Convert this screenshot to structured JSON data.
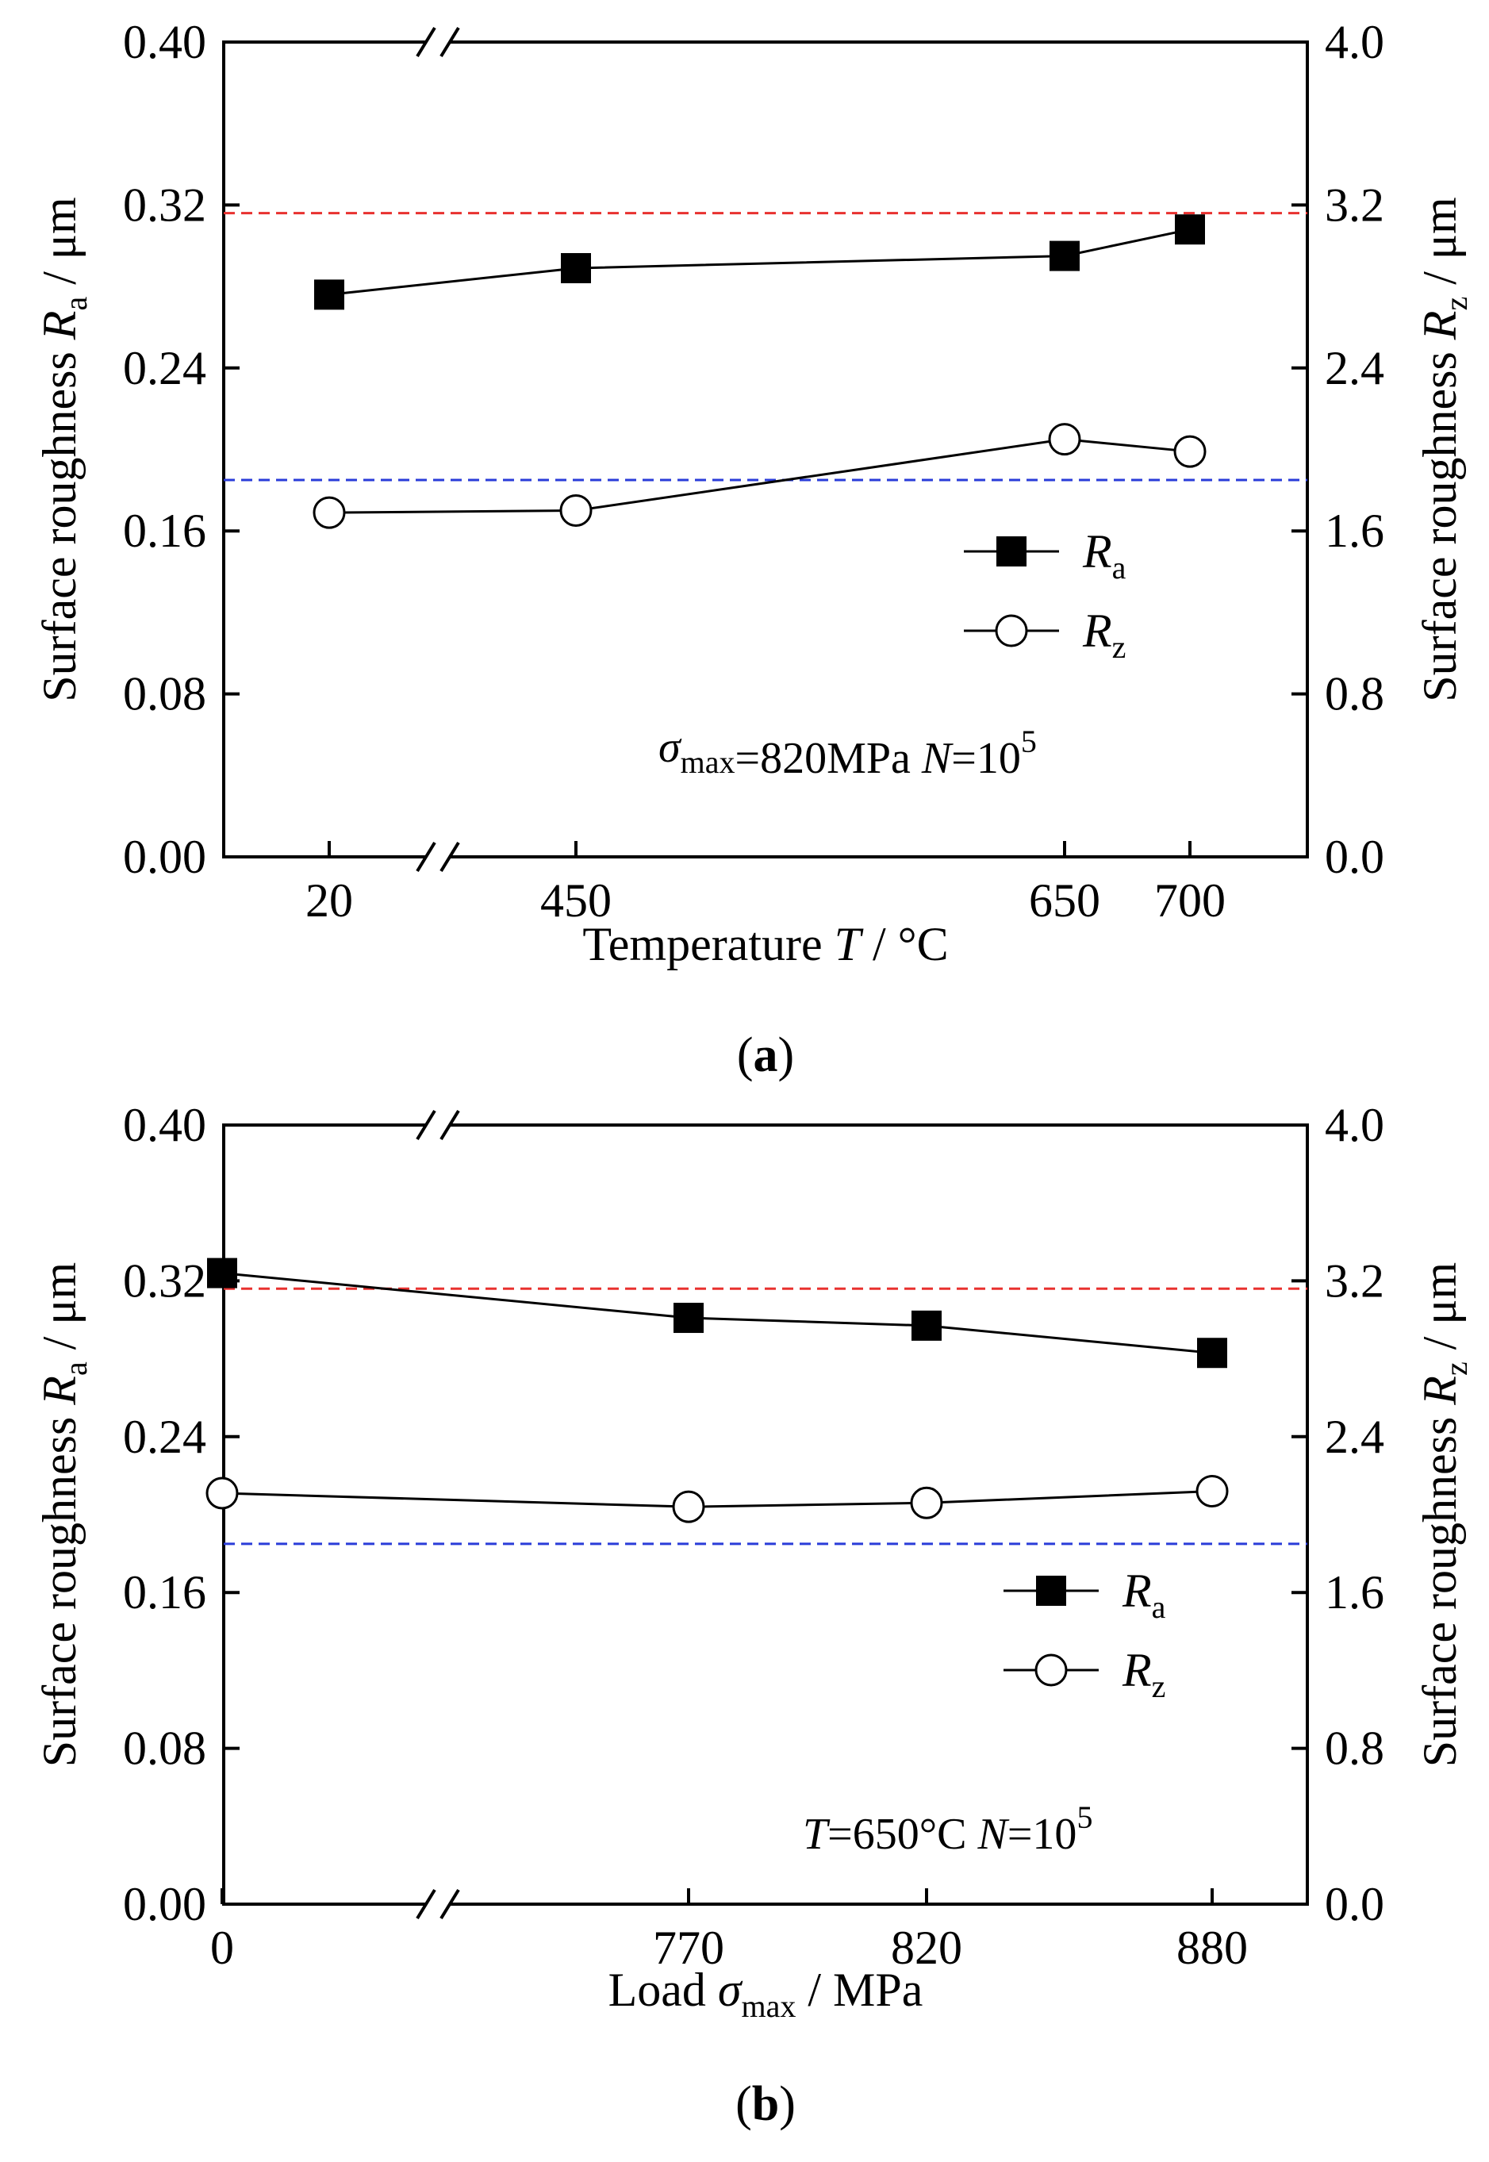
{
  "chart_data": [
    {
      "type": "line",
      "panel_label": "(a)",
      "xlabel": {
        "main": "Temperature ",
        "var": "T",
        "unit": " / °C"
      },
      "ylabel_left": {
        "main": "Surface roughness ",
        "var": "R",
        "sub": "a",
        "unit": " / μm"
      },
      "ylabel_right": {
        "main": "Surface roughness ",
        "var": "R",
        "sub": "z",
        "unit": " / μm"
      },
      "x_tick_labels": [
        "20",
        "450",
        "650",
        "700"
      ],
      "y_left_ticks": [
        "0.00",
        "0.08",
        "0.16",
        "0.24",
        "0.32",
        "0.40"
      ],
      "y_right_ticks": [
        "0.0",
        "0.8",
        "1.6",
        "2.4",
        "3.2",
        "4.0"
      ],
      "y_left_range": [
        0,
        0.4
      ],
      "y_right_range": [
        0,
        4.0
      ],
      "axis_break": true,
      "series": [
        {
          "legend_var": "R",
          "legend_sub": "a",
          "marker": "filled-square",
          "axis": "left",
          "x": [
            20,
            450,
            650,
            700
          ],
          "values": [
            0.276,
            0.289,
            0.295,
            0.308
          ]
        },
        {
          "legend_var": "R",
          "legend_sub": "z",
          "marker": "open-circle",
          "axis": "right",
          "x": [
            20,
            450,
            650,
            700
          ],
          "values": [
            1.69,
            1.7,
            2.05,
            1.99
          ]
        }
      ],
      "reference_lines": [
        {
          "color": "#e8312f",
          "axis": "left",
          "value": 0.316
        },
        {
          "color": "#2a3cd9",
          "axis": "left",
          "value": 0.185
        }
      ],
      "annotation": [
        {
          "t": "σ",
          "style": "italic"
        },
        {
          "t": "max",
          "style": "sub"
        },
        {
          "t": "=820MPa",
          "style": "normal"
        },
        {
          "t": "    ",
          "style": "normal"
        },
        {
          "t": "N",
          "style": "italic"
        },
        {
          "t": "=10",
          "style": "normal"
        },
        {
          "t": "5",
          "style": "sup"
        }
      ],
      "legend_position": "center-right"
    },
    {
      "type": "line",
      "panel_label": "(b)",
      "xlabel": {
        "main": "Load ",
        "var": "σ",
        "sub": "max",
        "unit": " / MPa"
      },
      "ylabel_left": {
        "main": "Surface roughness ",
        "var": "R",
        "sub": "a",
        "unit": " / μm"
      },
      "ylabel_right": {
        "main": "Surface roughness ",
        "var": "R",
        "sub": "z",
        "unit": " / μm"
      },
      "x_tick_labels": [
        "0",
        "770",
        "820",
        "880"
      ],
      "y_left_ticks": [
        "0.00",
        "0.08",
        "0.16",
        "0.24",
        "0.32",
        "0.40"
      ],
      "y_right_ticks": [
        "0.0",
        "0.8",
        "1.6",
        "2.4",
        "3.2",
        "4.0"
      ],
      "y_left_range": [
        0,
        0.4
      ],
      "y_right_range": [
        0,
        4.0
      ],
      "axis_break": true,
      "series": [
        {
          "legend_var": "R",
          "legend_sub": "a",
          "marker": "filled-square",
          "axis": "left",
          "x": [
            0,
            770,
            820,
            880
          ],
          "values": [
            0.324,
            0.301,
            0.297,
            0.283
          ]
        },
        {
          "legend_var": "R",
          "legend_sub": "z",
          "marker": "open-circle",
          "axis": "right",
          "x": [
            0,
            770,
            820,
            880
          ],
          "values": [
            2.11,
            2.04,
            2.06,
            2.12
          ]
        }
      ],
      "reference_lines": [
        {
          "color": "#e8312f",
          "axis": "left",
          "value": 0.316
        },
        {
          "color": "#2a3cd9",
          "axis": "left",
          "value": 0.185
        }
      ],
      "annotation": [
        {
          "t": "T",
          "style": "italic"
        },
        {
          "t": "=650°C",
          "style": "normal"
        },
        {
          "t": "    ",
          "style": "normal"
        },
        {
          "t": "N",
          "style": "italic"
        },
        {
          "t": "=10",
          "style": "normal"
        },
        {
          "t": "5",
          "style": "sup"
        }
      ],
      "legend_position": "center-right"
    }
  ]
}
